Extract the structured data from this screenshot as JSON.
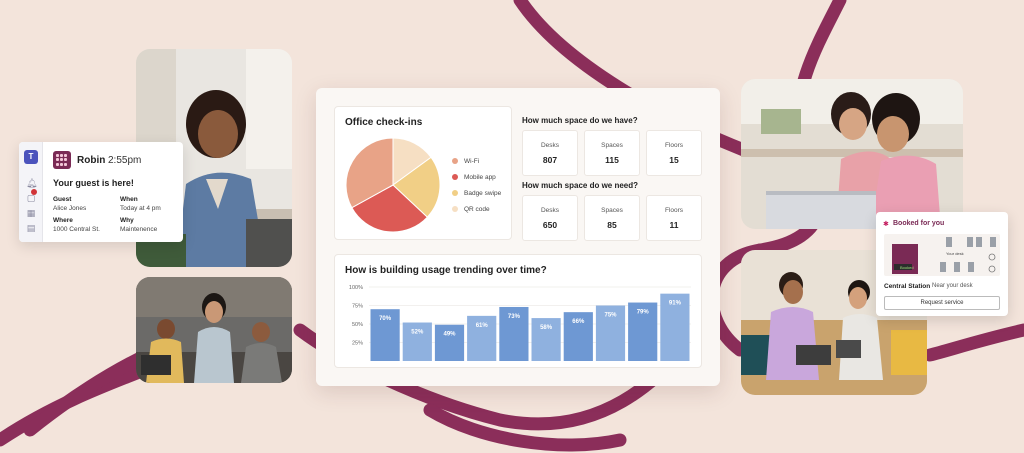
{
  "colors": {
    "background": "#f3e4db",
    "swoosh": "#8b2e5a",
    "bar_fill": "#8fb1df",
    "bar_fill_dark": "#6e98d3",
    "brand": "#7a2a55"
  },
  "teams_card": {
    "sender": "Robin",
    "time": "2:55pm",
    "message": "Your guest is here!",
    "guest_label": "Guest",
    "guest_value": "Alice Jones",
    "when_label": "When",
    "when_value": "Today at 4 pm",
    "where_label": "Where",
    "where_value": "1000 Central St.",
    "why_label": "Why",
    "why_value": "Maintenence",
    "rail_icons": [
      "teams-icon",
      "bell-icon",
      "chat-icon",
      "calendar-icon",
      "files-icon"
    ]
  },
  "dashboard": {
    "checkins": {
      "title": "Office check-ins"
    },
    "space_have": {
      "title": "How much space do we have?",
      "stats": [
        {
          "label": "Desks",
          "value": "807"
        },
        {
          "label": "Spaces",
          "value": "115"
        },
        {
          "label": "Floors",
          "value": "15"
        }
      ]
    },
    "space_need": {
      "title": "How much space do we need?",
      "stats": [
        {
          "label": "Desks",
          "value": "650"
        },
        {
          "label": "Spaces",
          "value": "85"
        },
        {
          "label": "Floors",
          "value": "11"
        }
      ]
    },
    "usage": {
      "title": "How is building usage trending over time?"
    }
  },
  "chart_data": [
    {
      "type": "pie",
      "title": "Office check-ins",
      "categories": [
        "Wi-Fi",
        "Mobile app",
        "Badge swipe",
        "QR code"
      ],
      "values": [
        33,
        30,
        22,
        15
      ],
      "colors": [
        "#e8a387",
        "#dc5a55",
        "#f1cf86",
        "#f6dfc3"
      ]
    },
    {
      "type": "bar",
      "title": "How is building usage trending over time?",
      "ytick_labels": [
        "100%",
        "75%",
        "50%",
        "25%"
      ],
      "ylim": [
        0,
        100
      ],
      "categories": [
        "",
        "",
        "",
        "",
        "",
        "",
        "",
        "",
        "",
        ""
      ],
      "values": [
        70,
        52,
        49,
        61,
        73,
        58,
        66,
        75,
        79,
        91
      ],
      "value_labels": [
        "70%",
        "52%",
        "49%",
        "61%",
        "73%",
        "58%",
        "66%",
        "75%",
        "79%",
        "91%"
      ]
    }
  ],
  "booked_card": {
    "title": "Booked for you",
    "map_label": "Your desk",
    "status": "Booked",
    "station": "Central Station",
    "location": "Near your desk",
    "button": "Request service"
  }
}
